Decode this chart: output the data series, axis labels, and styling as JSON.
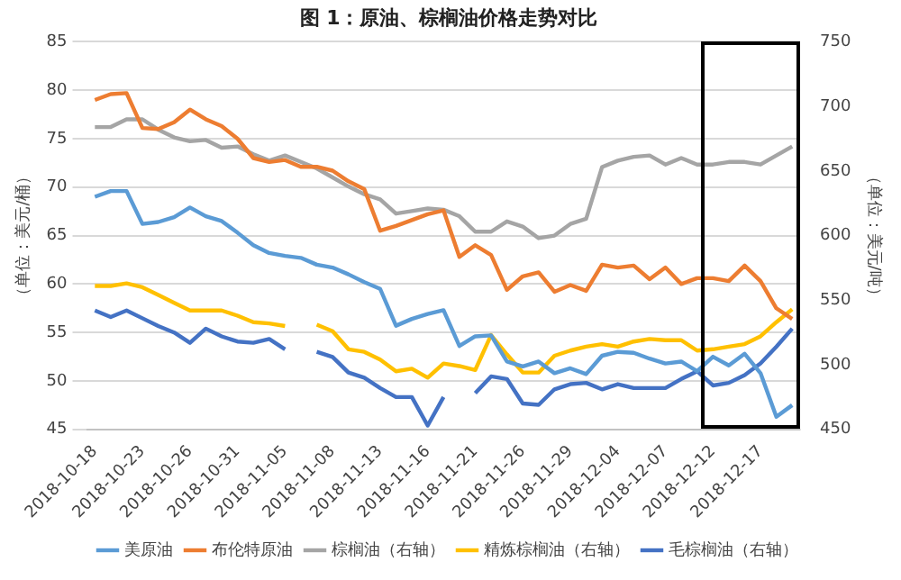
{
  "chart_data": {
    "type": "line",
    "title": "图 1：原油、棕榈油价格走势对比",
    "ylabel": "（单位：美元/桶）",
    "y2label": "（单位：美元/吨）",
    "categories": [
      "2018-10-18",
      null,
      null,
      "2018-10-23",
      null,
      null,
      "2018-10-26",
      null,
      null,
      "2018-10-31",
      null,
      null,
      "2018-11-05",
      null,
      null,
      "2018-11-08",
      null,
      null,
      "2018-11-13",
      null,
      null,
      "2018-11-16",
      null,
      null,
      "2018-11-21",
      null,
      null,
      "2018-11-26",
      null,
      null,
      "2018-11-29",
      null,
      null,
      "2018-12-04",
      null,
      null,
      "2018-12-07",
      null,
      null,
      "2018-12-12",
      null,
      null,
      "2018-12-17",
      null,
      null
    ],
    "series": [
      {
        "name": "美原油",
        "color": "#5b9bd5",
        "values": [
          69.0,
          69.6,
          69.6,
          66.2,
          66.4,
          66.9,
          67.9,
          67.0,
          66.5,
          65.3,
          64.0,
          63.2,
          62.9,
          62.7,
          62.0,
          61.7,
          61.0,
          60.2,
          59.5,
          55.7,
          56.4,
          56.9,
          57.3,
          53.6,
          54.6,
          54.7,
          52.0,
          51.5,
          52.0,
          50.8,
          51.3,
          50.7,
          52.6,
          53.0,
          52.9,
          52.3,
          51.8,
          52.0,
          51.0,
          52.5,
          51.6,
          52.8,
          50.8,
          46.3,
          47.5
        ]
      },
      {
        "name": "布伦特原油",
        "color": "#ed7d31",
        "values": [
          79.0,
          79.6,
          79.7,
          76.1,
          76.0,
          76.7,
          78.0,
          77.0,
          76.3,
          75.0,
          73.0,
          72.6,
          72.8,
          72.1,
          72.1,
          71.7,
          70.6,
          69.8,
          65.5,
          66.0,
          66.6,
          67.2,
          67.6,
          62.8,
          64.0,
          63.0,
          59.4,
          60.8,
          61.2,
          59.2,
          59.9,
          59.3,
          62.0,
          61.7,
          61.9,
          60.5,
          61.7,
          60.0,
          60.6,
          60.6,
          60.3,
          61.9,
          60.3,
          57.5,
          56.4
        ]
      },
      {
        "name": "棕榈油（右轴）",
        "color": "#a5a5a5",
        "axis": "y2",
        "values": [
          684,
          684,
          690,
          690,
          682,
          676,
          673,
          674,
          668,
          669,
          663,
          658,
          662,
          657,
          652,
          645,
          638,
          632,
          628,
          617,
          619,
          621,
          620,
          615,
          603,
          603,
          611,
          607,
          598,
          600,
          609,
          613,
          653,
          658,
          661,
          662,
          655,
          660,
          655,
          655,
          657,
          657,
          655,
          662,
          669
        ]
      },
      {
        "name": "精炼棕榈油（右轴）",
        "color": "#ffc000",
        "axis": "y2",
        "values": [
          561,
          561,
          563,
          560,
          554,
          548,
          542,
          542,
          542,
          538,
          533,
          532,
          530,
          null,
          531,
          526,
          512,
          510,
          504,
          495,
          497,
          490,
          501,
          499,
          496,
          523,
          508,
          494,
          494,
          507,
          511,
          514,
          516,
          514,
          518,
          520,
          519,
          519,
          511,
          512,
          514,
          516,
          522,
          533,
          543
        ]
      },
      {
        "name": "毛棕榈油（右轴）",
        "color": "#4472c4",
        "axis": "y2",
        "values": [
          542,
          537,
          542,
          536,
          530,
          525,
          517,
          528,
          522,
          518,
          517,
          520,
          512,
          null,
          510,
          506,
          494,
          490,
          482,
          475,
          475,
          453,
          475,
          null,
          478,
          491,
          489,
          470,
          469,
          481,
          485,
          486,
          481,
          485,
          482,
          482,
          482,
          489,
          495,
          484,
          486,
          492,
          501,
          514,
          528
        ]
      }
    ],
    "ylim": [
      45,
      85
    ],
    "yticks": [
      45,
      50,
      55,
      60,
      65,
      70,
      75,
      80,
      85
    ],
    "y2lim": [
      450,
      750
    ],
    "y2ticks": [
      450,
      500,
      550,
      600,
      650,
      700,
      750
    ],
    "grid": "y",
    "legend": "bottom",
    "marker": "none",
    "line_style": "solid"
  }
}
